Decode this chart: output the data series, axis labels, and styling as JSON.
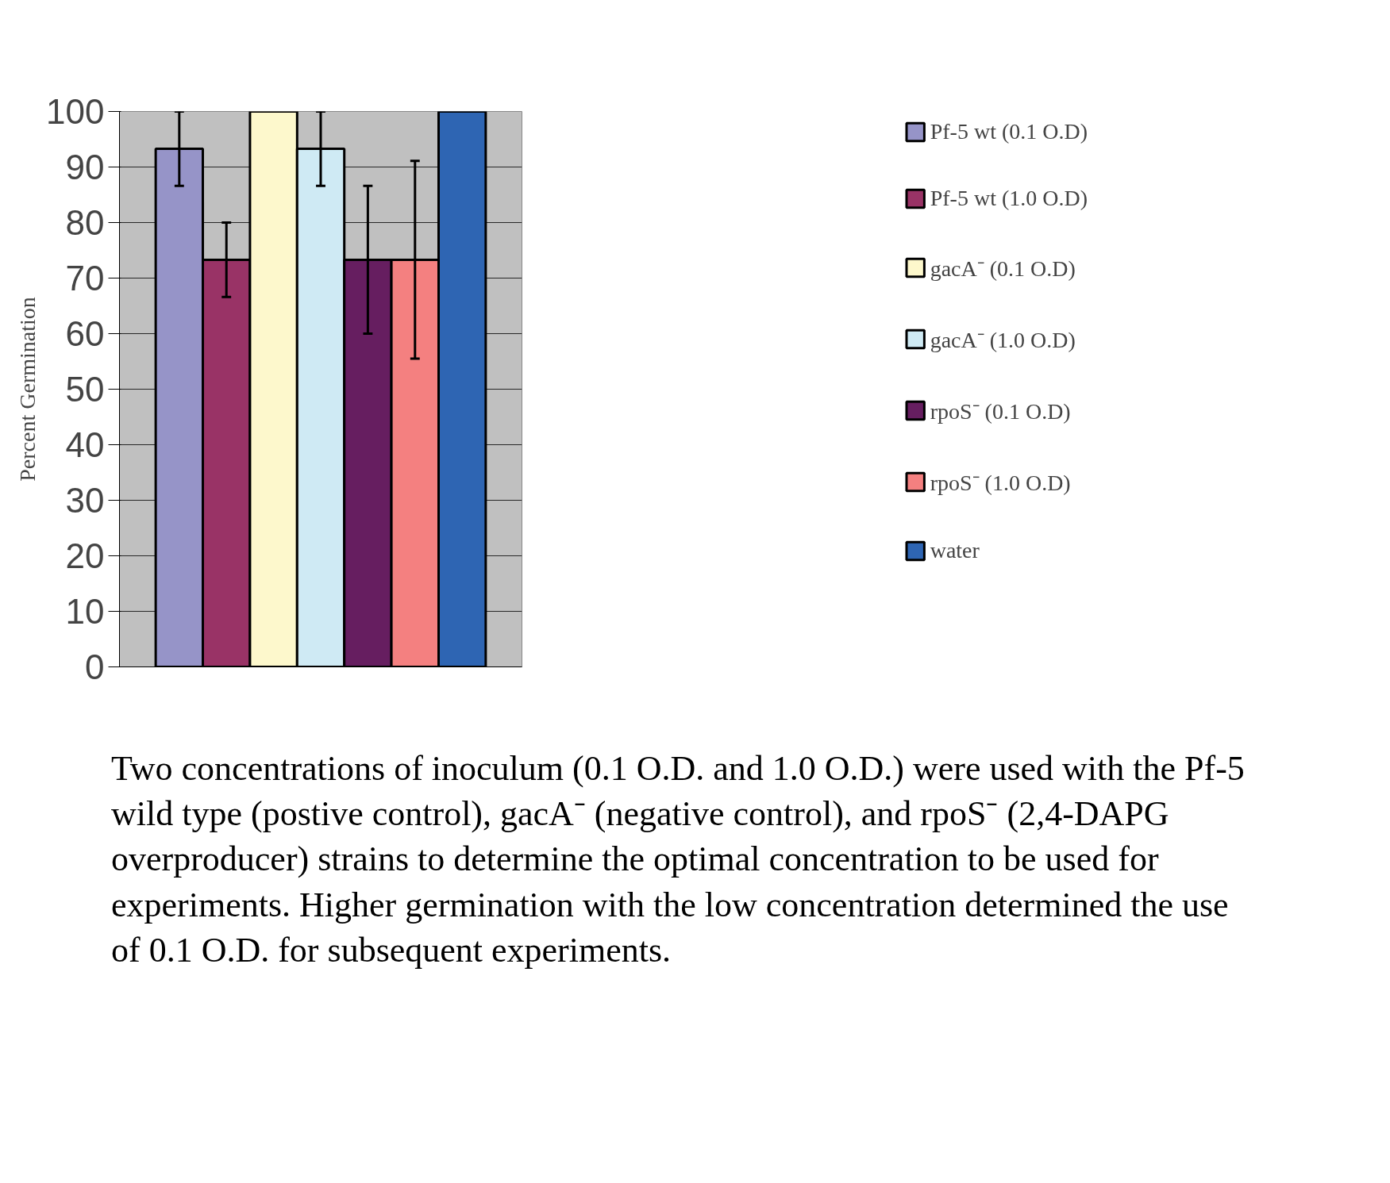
{
  "chart_data": {
    "type": "bar",
    "ylabel": "Percent Germination",
    "categories": [
      null
    ],
    "series": [
      {
        "name": "Pf-5 wt (0.1 O.D)",
        "color": "#9694c8",
        "values": [
          93.3
        ],
        "errors": [
          6.7
        ]
      },
      {
        "name": "Pf-5 wt (1.0 O.D)",
        "color": "#993366",
        "values": [
          73.3
        ],
        "errors": [
          6.7
        ]
      },
      {
        "name": "gacA⁻ (0.1 O.D)",
        "color": "#fdf8cc",
        "values": [
          100
        ],
        "errors": [
          null
        ]
      },
      {
        "name": "gacA⁻ (1.0 O.D)",
        "color": "#cfeaf4",
        "values": [
          93.3
        ],
        "errors": [
          6.7
        ]
      },
      {
        "name": "rpoS⁻ (0.1 O.D)",
        "color": "#661e60",
        "values": [
          73.3
        ],
        "errors": [
          13.3
        ]
      },
      {
        "name": "rpoS⁻ (1.0 O.D)",
        "color": "#f48080",
        "values": [
          73.3
        ],
        "errors": [
          17.8
        ]
      },
      {
        "name": "water",
        "color": "#2e65b3",
        "values": [
          100
        ],
        "errors": [
          null
        ]
      }
    ],
    "ylim": [
      0,
      100
    ],
    "yticks": [
      0,
      10,
      20,
      30,
      40,
      50,
      60,
      70,
      80,
      90,
      100
    ],
    "grid": "y",
    "legend": "right",
    "tick_labels": "y",
    "annotations": [
      "Two concentrations of inoculum (0.1 O.D. and 1.0 O.D.) were used with the Pf-5 wild type (postive control), gacA⁻ (negative control), and rpoS⁻ (2,4-DAPG overproducer) strains to determine the optimal concentration to be used for experiments. Higher germination with the low concentration determined the use of 0.1 O.D. for subsequent experiments."
    ]
  }
}
